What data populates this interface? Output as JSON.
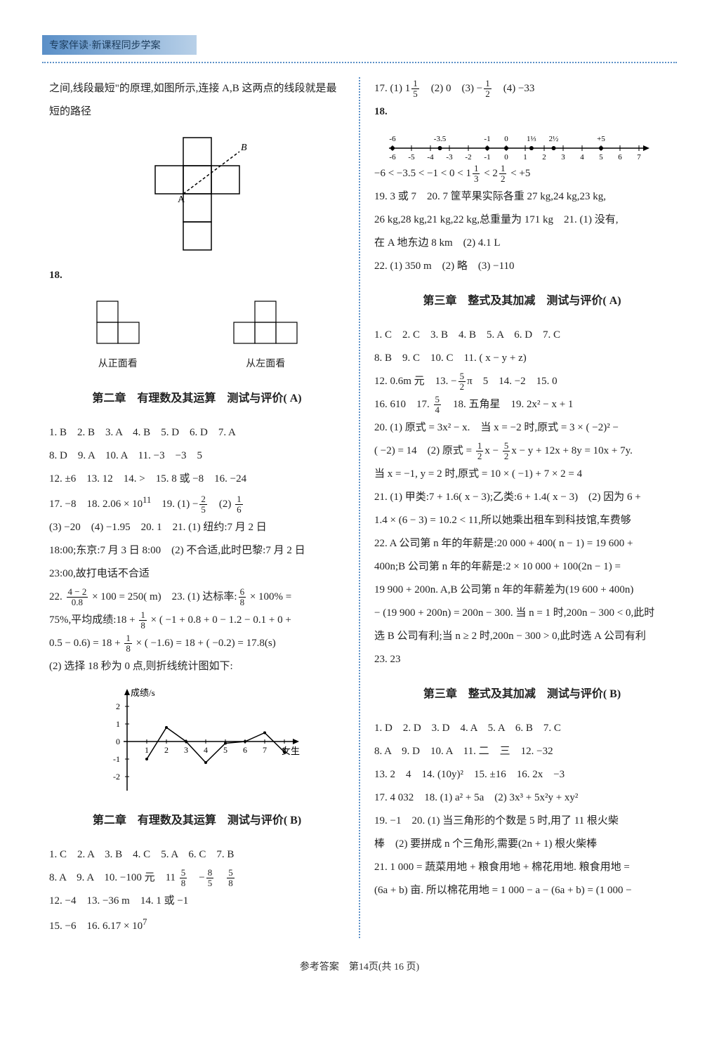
{
  "header": "专家伴读·新课程同步学案",
  "left": {
    "intro": "之间,线段最短\"的原理,如图所示,连接 A,B 这两点的线段就是最短的路径",
    "fig_labels": {
      "A": "A",
      "B": "B"
    },
    "q18_label": "18.",
    "view_front": "从正面看",
    "view_left": "从左面看",
    "section_ch2a": "第二章　有理数及其运算　测试与评价( A)",
    "ch2a_answers": [
      "1. B　2. B　3. A　4. B　5. D　6. D　7. A",
      "8. D　9. A　10. A　11. −3　−3　5",
      "12. ±6　13. 12　14. >　15. 8 或 −8　16. −24"
    ],
    "ch2a_17_pre": "17. −8　18. 2.06 × 10",
    "ch2a_17_exp": "11",
    "ch2a_17_mid": "　19. (1) −",
    "ch2a_17_f1n": "2",
    "ch2a_17_f1d": "5",
    "ch2a_17_mid2": "　(2) ",
    "ch2a_17_f2n": "1",
    "ch2a_17_f2d": "6",
    "ch2a_line4": "(3) −20　(4) −1.95　20. 1　21. (1) 纽约:7 月 2 日",
    "ch2a_line5": "18:00;东京:7 月 3 日 8:00　(2) 不合适,此时巴黎:7 月 2 日",
    "ch2a_line6": "23:00,故打电话不合适",
    "ch2a_22_pre": "22. ",
    "ch2a_22_f1n": "4 − 2",
    "ch2a_22_f1d": "0.8",
    "ch2a_22_mid": " × 100 = 250( m)　23. (1) 达标率:",
    "ch2a_22_f2n": "6",
    "ch2a_22_f2d": "8",
    "ch2a_22_end": " × 100% =",
    "ch2a_23_pre": "75%,平均成绩:18 + ",
    "ch2a_23_f1n": "1",
    "ch2a_23_f1d": "8",
    "ch2a_23_mid": " × ( −1 + 0.8 + 0 − 1.2 − 0.1 + 0 +",
    "ch2a_23b_pre": "0.5 − 0.6) = 18 + ",
    "ch2a_23b_f1n": "1",
    "ch2a_23b_f1d": "8",
    "ch2a_23b_end": " × ( −1.6) = 18 + ( −0.2) = 17.8(s)",
    "ch2a_23c": "(2) 选择 18 秒为 0 点,则折线统计图如下:",
    "line_chart": {
      "ylabel": "成绩/s",
      "xlabel": "女生",
      "y_ticks": [
        -2,
        -1,
        0,
        1,
        2
      ],
      "x_ticks": [
        1,
        2,
        3,
        4,
        5,
        6,
        7,
        8
      ],
      "points": [
        [
          1,
          -1
        ],
        [
          2,
          0.8
        ],
        [
          3,
          0
        ],
        [
          4,
          -1.2
        ],
        [
          5,
          -0.1
        ],
        [
          6,
          0
        ],
        [
          7,
          0.5
        ],
        [
          8,
          -0.6
        ]
      ],
      "axis_color": "#000000",
      "line_color": "#000000"
    },
    "section_ch2b": "第二章　有理数及其运算　测试与评价( B)",
    "ch2b_answers1": "1. C　2. A　3. B　4. C　5. A　6. C　7. B",
    "ch2b_8_pre": "8. A　9. A　10. −100 元　11 ",
    "ch2b_8_f1n": "5",
    "ch2b_8_f1d": "8",
    "ch2b_8_mid": "　−",
    "ch2b_8_f2n": "8",
    "ch2b_8_f2d": "5",
    "ch2b_8_mid2": "　",
    "ch2b_8_f3n": "5",
    "ch2b_8_f3d": "8",
    "ch2b_answers3": "12. −4　13. −36 m　14. 1 或 −1",
    "ch2b_15_pre": "15. −6　16. 6.17 × 10",
    "ch2b_15_exp": "7"
  },
  "right": {
    "q17_pre": "17. (1) 1",
    "q17_f1n": "1",
    "q17_f1d": "5",
    "q17_mid": "　(2) 0　(3) −",
    "q17_f2n": "1",
    "q17_f2d": "2",
    "q17_end": "　(4) −33",
    "q18_label": "18.",
    "number_line": {
      "ticks": [
        -6,
        -5,
        -4,
        -3,
        -2,
        -1,
        0,
        1,
        2,
        3,
        4,
        5,
        6,
        7
      ],
      "points_above": [
        "-6",
        "-3.5",
        "-1",
        "0",
        "1⅓",
        "2½",
        "+5"
      ],
      "point_positions": [
        -6,
        -3.5,
        -1,
        0,
        1.33,
        2.5,
        5
      ],
      "axis_color": "#000000"
    },
    "q18_ineq_pre": "−6 < −3.5 < −1 < 0 < 1",
    "q18_ineq_f1n": "1",
    "q18_ineq_f1d": "3",
    "q18_ineq_mid": " < 2",
    "q18_ineq_f2n": "1",
    "q18_ineq_f2d": "2",
    "q18_ineq_end": " < +5",
    "q19_20": "19. 3 或 7　20. 7 筐苹果实际各重 27 kg,24 kg,23 kg,",
    "q20b": "26 kg,28 kg,21 kg,22 kg,总重量为 171 kg　21. (1) 没有,",
    "q21b": "在 A 地东边 8 km　(2) 4.1 L",
    "q22": "22. (1) 350 m　(2) 略　(3) −110",
    "section_ch3a": "第三章　整式及其加减　测试与评价( A)",
    "ch3a_l1": "1. C　2. C　3. B　4. B　5. A　6. D　7. C",
    "ch3a_l2": "8. B　9. C　10. C　11. ( x − y + z)",
    "ch3a_12_pre": "12. 0.6m 元　13. −",
    "ch3a_12_f1n": "5",
    "ch3a_12_f1d": "2",
    "ch3a_12_end": "π　5　14. −2　15. 0",
    "ch3a_16_pre": "16. 610　17. ",
    "ch3a_16_f1n": "5",
    "ch3a_16_f1d": "4",
    "ch3a_16_end": "　18. 五角星　19. 2x² − x + 1",
    "ch3a_20": "20. (1) 原式 = 3x² − x.　当 x = −2 时,原式 = 3 × ( −2)² −",
    "ch3a_20b_pre": "( −2) = 14　(2) 原式 = ",
    "ch3a_20b_f1n": "1",
    "ch3a_20b_f1d": "2",
    "ch3a_20b_mid": "x − ",
    "ch3a_20b_f2n": "5",
    "ch3a_20b_f2d": "2",
    "ch3a_20b_end": "x − y + 12x + 8y = 10x + 7y.",
    "ch3a_20c": "当 x = −1, y = 2 时,原式 = 10 × ( −1) + 7 × 2 = 4",
    "ch3a_21": "21. (1) 甲类:7 + 1.6( x − 3);乙类:6 + 1.4( x − 3)　(2) 因为 6 +",
    "ch3a_21b": "1.4 × (6 − 3) = 10.2 < 11,所以她乘出租车到科技馆,车费够",
    "ch3a_22": "22. A 公司第 n 年的年薪是:20 000 + 400( n − 1) = 19 600 +",
    "ch3a_22b": "400n;B 公司第 n 年的年薪是:2 × 10 000 + 100(2n − 1) =",
    "ch3a_22c": "19 900 + 200n. A,B 公司第 n 年的年薪差为(19 600 + 400n)",
    "ch3a_22d": "− (19 900 + 200n) = 200n − 300. 当 n = 1 时,200n − 300 < 0,此时",
    "ch3a_22e": "选 B 公司有利;当 n ≥ 2 时,200n − 300 > 0,此时选 A 公司有利",
    "ch3a_23": "23. 23",
    "section_ch3b": "第三章　整式及其加减　测试与评价( B)",
    "ch3b_l1": "1. D　2. D　3. D　4. A　5. A　6. B　7. C",
    "ch3b_l2": "8. A　9. D　10. A　11. 二　三　12. −32",
    "ch3b_l3": "13. 2　4　14. (10y)²　15. ±16　16. 2x　−3",
    "ch3b_l4": "17. 4 032　18. (1) a² + 5a　(2) 3x³ + 5x²y + xy²",
    "ch3b_l5": "19. −1　20. (1) 当三角形的个数是 5 时,用了 11 根火柴",
    "ch3b_l6": "棒　(2) 要拼成 n 个三角形,需要(2n + 1) 根火柴棒",
    "ch3b_l7": "21. 1 000 = 蔬菜用地 + 粮食用地 + 棉花用地. 粮食用地 =",
    "ch3b_l8": "(6a + b) 亩. 所以棉花用地 = 1 000 − a − (6a + b) = (1 000 −"
  },
  "footer": "参考答案　第14页(共 16 页)"
}
